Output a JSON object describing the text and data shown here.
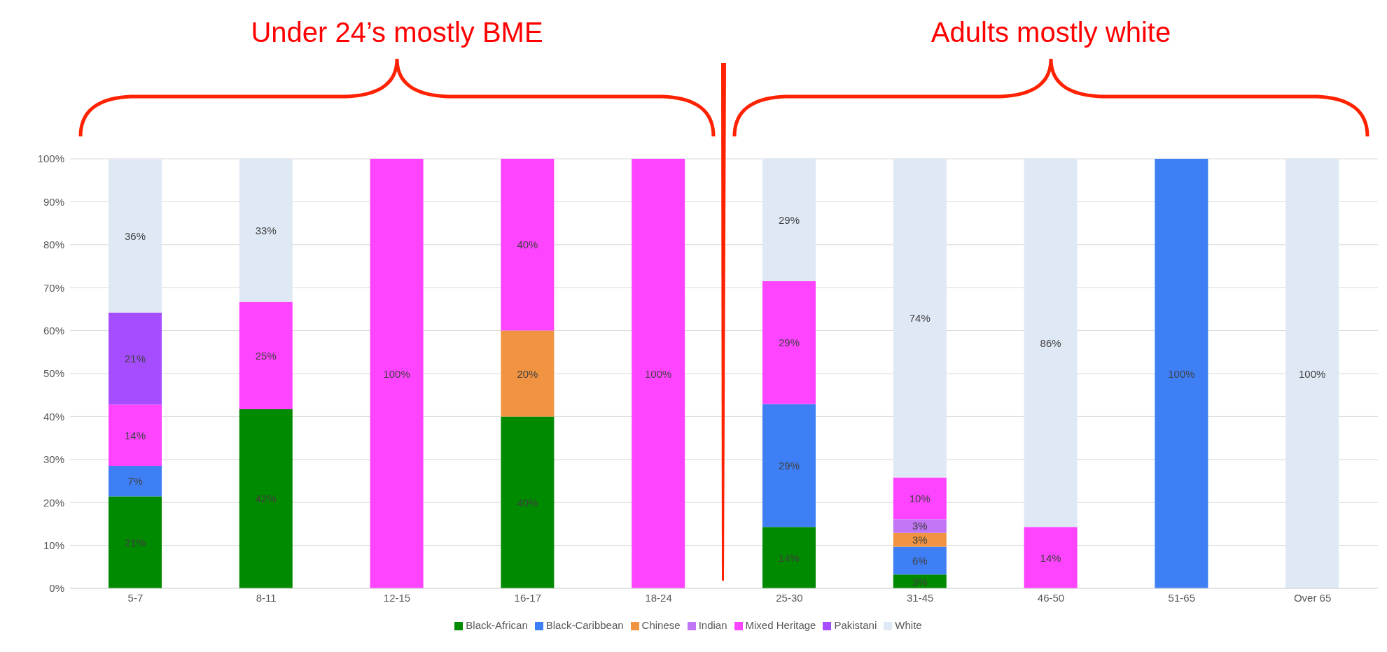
{
  "chart_data": {
    "type": "bar",
    "stacked": true,
    "categories": [
      "5-7",
      "8-11",
      "12-15",
      "16-17",
      "18-24",
      "25-30",
      "31-45",
      "46-50",
      "51-65",
      "Over 65"
    ],
    "series": [
      {
        "name": "Black-African",
        "color": "#008a00",
        "values": [
          21.4,
          41.7,
          null,
          40,
          null,
          14.3,
          3.2,
          null,
          null,
          null
        ],
        "value_labels": [
          "21%",
          "42%",
          null,
          "40%",
          null,
          "14%",
          "3%",
          null,
          null,
          null
        ]
      },
      {
        "name": "Black-Caribbean",
        "color": "#3f7ff5",
        "values": [
          7.1,
          null,
          null,
          null,
          null,
          28.6,
          6.5,
          null,
          100,
          null
        ],
        "value_labels": [
          "7%",
          null,
          null,
          null,
          null,
          "29%",
          "6%",
          null,
          "100%",
          null
        ]
      },
      {
        "name": "Chinese",
        "color": "#f19441",
        "values": [
          null,
          null,
          null,
          20,
          null,
          null,
          3.2,
          null,
          null,
          null
        ],
        "value_labels": [
          null,
          null,
          null,
          "20%",
          null,
          null,
          "3%",
          null,
          null,
          null
        ]
      },
      {
        "name": "Indian",
        "color": "#c076f5",
        "values": [
          null,
          null,
          null,
          null,
          null,
          null,
          3.2,
          null,
          null,
          null
        ],
        "value_labels": [
          null,
          null,
          null,
          null,
          null,
          null,
          "3%",
          null,
          null,
          null
        ]
      },
      {
        "name": "Mixed Heritage",
        "color": "#ff44ff",
        "values": [
          14.3,
          25,
          100,
          40,
          100,
          28.6,
          9.7,
          14.3,
          null,
          null
        ],
        "value_labels": [
          "14%",
          "25%",
          "100%",
          "40%",
          "100%",
          "29%",
          "10%",
          "14%",
          null,
          null
        ]
      },
      {
        "name": "Pakistani",
        "color": "#a64dff",
        "values": [
          21.4,
          null,
          null,
          null,
          null,
          null,
          null,
          null,
          null,
          null
        ],
        "value_labels": [
          "21%",
          null,
          null,
          null,
          null,
          null,
          null,
          null,
          null,
          null
        ]
      },
      {
        "name": "White",
        "color": "#dfe9f5",
        "values": [
          35.7,
          33.3,
          null,
          null,
          null,
          28.6,
          74.2,
          85.7,
          null,
          100
        ],
        "value_labels": [
          "36%",
          "33%",
          null,
          null,
          null,
          "29%",
          "74%",
          "86%",
          null,
          "100%"
        ]
      }
    ],
    "ylim": [
      0,
      100
    ],
    "yticks": [
      {
        "value": 0,
        "label": "0%"
      },
      {
        "value": 10,
        "label": "10%"
      },
      {
        "value": 20,
        "label": "20%"
      },
      {
        "value": 30,
        "label": "30%"
      },
      {
        "value": 40,
        "label": "40%"
      },
      {
        "value": 50,
        "label": "50%"
      },
      {
        "value": 60,
        "label": "60%"
      },
      {
        "value": 70,
        "label": "70%"
      },
      {
        "value": 80,
        "label": "80%"
      },
      {
        "value": 90,
        "label": "90%"
      },
      {
        "value": 100,
        "label": "100%"
      }
    ],
    "grid": "y",
    "legend": "bottom",
    "annotations": [
      "Under 24’s mostly BME",
      "Adults mostly white"
    ]
  }
}
